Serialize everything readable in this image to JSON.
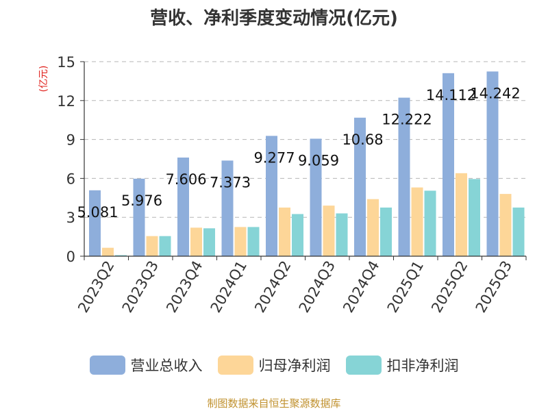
{
  "chart_data": {
    "type": "bar",
    "title": "营收、净利季度变动情况(亿元)",
    "ylabel": "(亿元)",
    "xlabel": "",
    "categories": [
      "2023Q2",
      "2023Q3",
      "2023Q4",
      "2024Q1",
      "2024Q2",
      "2024Q3",
      "2024Q4",
      "2025Q1",
      "2025Q2",
      "2025Q3"
    ],
    "ylim": [
      0,
      15
    ],
    "yticks": [
      0,
      3,
      6,
      9,
      12,
      15
    ],
    "grid": true,
    "legend_position": "bottom",
    "series": [
      {
        "name": "营业总收入",
        "color": "#8eaedb",
        "values": [
          5.081,
          5.976,
          7.606,
          7.373,
          9.277,
          9.059,
          10.68,
          12.222,
          14.112,
          14.242
        ],
        "labels": [
          "5.081",
          "5.976",
          "7.606",
          "7.373",
          "9.277",
          "9.059",
          "10.68",
          "12.222",
          "14.112",
          "14.242"
        ]
      },
      {
        "name": "归母净利润",
        "color": "#fdd698",
        "values": [
          0.65,
          1.55,
          2.2,
          2.25,
          3.75,
          3.9,
          4.4,
          5.3,
          6.4,
          4.8
        ]
      },
      {
        "name": "扣非净利润",
        "color": "#86d4d6",
        "values": [
          0.08,
          1.55,
          2.15,
          2.25,
          3.25,
          3.3,
          3.75,
          5.05,
          5.95,
          3.75
        ]
      }
    ]
  },
  "source": "制图数据来自恒生聚源数据库"
}
